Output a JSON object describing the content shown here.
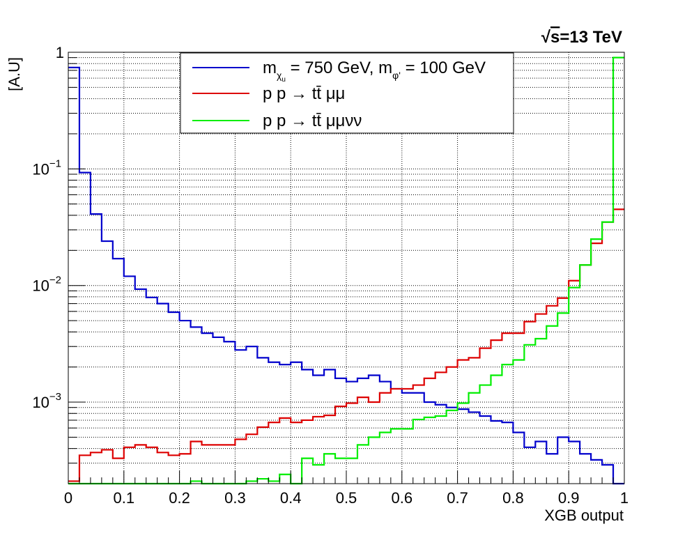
{
  "chart_data": {
    "type": "line",
    "xlabel": "XGB output",
    "ylabel": "[A.U]",
    "energy_label": {
      "sqrt": "√",
      "s": "s",
      "rest": "=13 TeV"
    },
    "xlim": [
      0,
      1
    ],
    "ylim": [
      0.0002,
      1
    ],
    "log_y": true,
    "grid": true,
    "legend_position": "top-center",
    "x_ticks": [
      "0",
      "0.1",
      "0.2",
      "0.3",
      "0.4",
      "0.5",
      "0.6",
      "0.7",
      "0.8",
      "0.9",
      "1"
    ],
    "y_ticks": [
      {
        "value": 1,
        "base": "1",
        "exp": ""
      },
      {
        "value": 0.1,
        "base": "10",
        "exp": "−1"
      },
      {
        "value": 0.01,
        "base": "10",
        "exp": "−2"
      },
      {
        "value": 0.001,
        "base": "10",
        "exp": "−3"
      }
    ],
    "bin_edges": [
      0,
      0.02,
      0.04,
      0.06,
      0.08,
      0.1,
      0.12,
      0.14,
      0.16,
      0.18,
      0.2,
      0.22,
      0.24,
      0.26,
      0.28,
      0.3,
      0.32,
      0.34,
      0.36,
      0.38,
      0.4,
      0.42,
      0.44,
      0.46,
      0.48,
      0.5,
      0.52,
      0.54,
      0.56,
      0.58,
      0.6,
      0.62,
      0.64,
      0.66,
      0.68,
      0.7,
      0.72,
      0.74,
      0.76,
      0.78,
      0.8,
      0.82,
      0.84,
      0.86,
      0.88,
      0.9,
      0.92,
      0.94,
      0.96,
      0.98,
      1
    ],
    "series": [
      {
        "legend": {
          "m": "m",
          "chi": "χ",
          "u": "u",
          "eq1": " = 750 GeV, m",
          "phi": "φ'",
          "eq2": " = 100 GeV"
        },
        "color": "#0000cc",
        "values": [
          0.74,
          0.093,
          0.041,
          0.024,
          0.017,
          0.012,
          0.0093,
          0.0079,
          0.007,
          0.0059,
          0.005,
          0.0044,
          0.0039,
          0.0036,
          0.0033,
          0.0028,
          0.003,
          0.0024,
          0.0022,
          0.0021,
          0.0022,
          0.0019,
          0.0017,
          0.0019,
          0.0016,
          0.0015,
          0.0016,
          0.0017,
          0.0015,
          0.0013,
          0.0012,
          0.0012,
          0.001,
          0.00095,
          0.0009,
          0.00087,
          0.00082,
          0.00076,
          0.00069,
          0.00067,
          0.00055,
          0.00041,
          0.00046,
          0.00036,
          0.0005,
          0.00046,
          0.00036,
          0.00032,
          0.00029,
          0.00019
        ]
      },
      {
        "legend": {
          "text": "p p → tt̄ μμ"
        },
        "color": "#dd0000",
        "values": [
          0.00021,
          0.00035,
          0.00037,
          0.00039,
          0.00033,
          0.00041,
          0.00043,
          0.00041,
          0.00037,
          0.00035,
          0.00036,
          0.00046,
          0.00043,
          0.00043,
          0.00043,
          0.00048,
          0.00053,
          0.00061,
          0.00067,
          0.00073,
          0.00067,
          0.0007,
          0.00075,
          0.00077,
          0.00092,
          0.00098,
          0.0011,
          0.001,
          0.0012,
          0.0013,
          0.0013,
          0.0014,
          0.0016,
          0.0018,
          0.002,
          0.0023,
          0.0024,
          0.0029,
          0.0034,
          0.0039,
          0.0039,
          0.0049,
          0.0057,
          0.0067,
          0.0078,
          0.011,
          0.015,
          0.023,
          0.035,
          0.045
        ]
      },
      {
        "legend": {
          "text": "p p → tt̄ μμνν"
        },
        "color": "#00ee00",
        "values": [
          0.0002,
          0.0002,
          0.0002,
          0.0002,
          0.0002,
          0.0002,
          0.0002,
          0.0002,
          0.0002,
          0.0002,
          0.0002,
          0.00021,
          0.0002,
          0.0002,
          0.0002,
          0.0002,
          0.00021,
          0.00022,
          0.00021,
          0.00024,
          0.0002,
          0.00033,
          0.00029,
          0.00036,
          0.00033,
          0.00033,
          0.00043,
          0.0005,
          0.00055,
          0.00059,
          0.00059,
          0.00071,
          0.00074,
          0.00076,
          0.00085,
          0.00098,
          0.0012,
          0.0014,
          0.0017,
          0.0021,
          0.0023,
          0.0031,
          0.0035,
          0.0045,
          0.0058,
          0.0096,
          0.015,
          0.025,
          0.035,
          0.9
        ]
      }
    ]
  }
}
